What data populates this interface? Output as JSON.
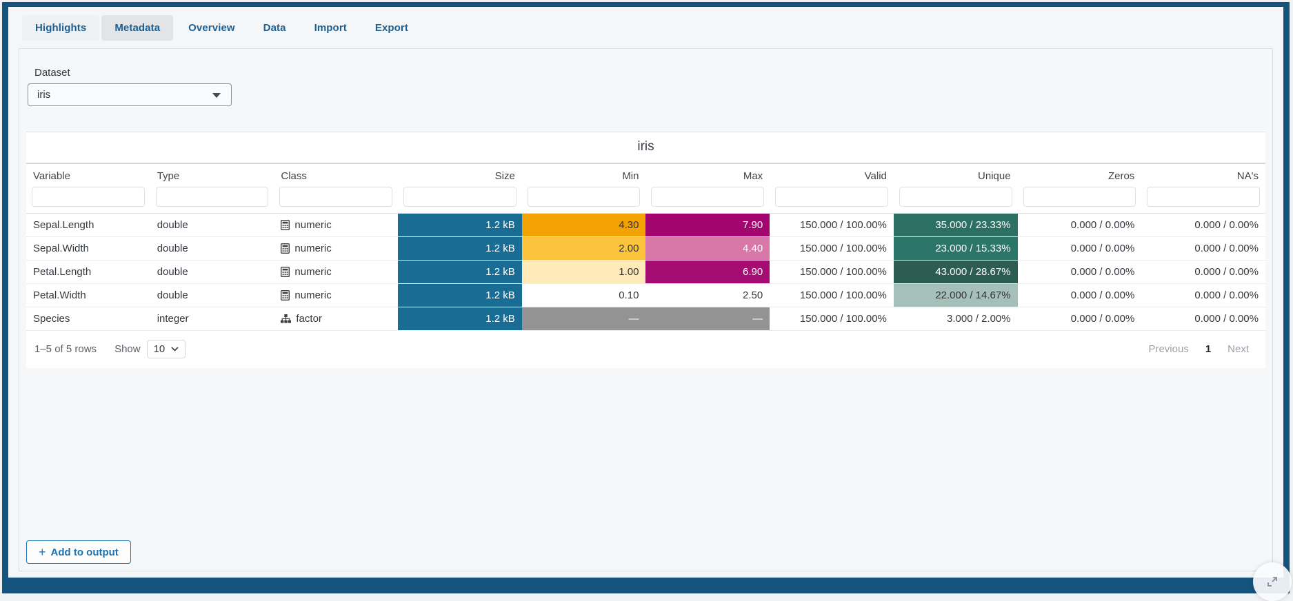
{
  "tabs": {
    "items": [
      {
        "label": "Highlights",
        "active": false,
        "tinted": true
      },
      {
        "label": "Metadata",
        "active": true,
        "tinted": false
      },
      {
        "label": "Overview",
        "active": false,
        "tinted": false
      },
      {
        "label": "Data",
        "active": false,
        "tinted": false
      },
      {
        "label": "Import",
        "active": false,
        "tinted": false
      },
      {
        "label": "Export",
        "active": false,
        "tinted": false
      }
    ]
  },
  "dataset": {
    "label": "Dataset",
    "selected": "iris"
  },
  "table": {
    "caption": "iris",
    "columns": [
      {
        "label": "Variable",
        "align": "left"
      },
      {
        "label": "Type",
        "align": "left"
      },
      {
        "label": "Class",
        "align": "left"
      },
      {
        "label": "Size",
        "align": "right"
      },
      {
        "label": "Min",
        "align": "right"
      },
      {
        "label": "Max",
        "align": "right"
      },
      {
        "label": "Valid",
        "align": "right"
      },
      {
        "label": "Unique",
        "align": "right"
      },
      {
        "label": "Zeros",
        "align": "right"
      },
      {
        "label": "NA's",
        "align": "right"
      }
    ],
    "rows": [
      {
        "cells": [
          {
            "text": "Sepal.Length"
          },
          {
            "text": "double"
          },
          {
            "text": "numeric",
            "icon": "calculator-icon"
          },
          {
            "text": "1.2 kB",
            "bg": "#196d95",
            "fg": "#ffffff"
          },
          {
            "text": "4.30",
            "bg": "#f3a203",
            "fg": "#333333"
          },
          {
            "text": "7.90",
            "bg": "#a2056d",
            "fg": "#ffffff"
          },
          {
            "text": "150.000 / 100.00%"
          },
          {
            "text": "35.000 / 23.33%",
            "bg": "#2c6f63",
            "fg": "#ffffff"
          },
          {
            "text": "0.000 / 0.00%"
          },
          {
            "text": "0.000 / 0.00%"
          }
        ]
      },
      {
        "cells": [
          {
            "text": "Sepal.Width"
          },
          {
            "text": "double"
          },
          {
            "text": "numeric",
            "icon": "calculator-icon"
          },
          {
            "text": "1.2 kB",
            "bg": "#196d95",
            "fg": "#ffffff"
          },
          {
            "text": "2.00",
            "bg": "#fbc43c",
            "fg": "#333333"
          },
          {
            "text": "4.40",
            "bg": "#d878a8",
            "fg": "#ffffff"
          },
          {
            "text": "150.000 / 100.00%"
          },
          {
            "text": "23.000 / 15.33%",
            "bg": "#2c7569",
            "fg": "#ffffff"
          },
          {
            "text": "0.000 / 0.00%"
          },
          {
            "text": "0.000 / 0.00%"
          }
        ]
      },
      {
        "cells": [
          {
            "text": "Petal.Length"
          },
          {
            "text": "double"
          },
          {
            "text": "numeric",
            "icon": "calculator-icon"
          },
          {
            "text": "1.2 kB",
            "bg": "#196d95",
            "fg": "#ffffff"
          },
          {
            "text": "1.00",
            "bg": "#fdeab8",
            "fg": "#333333"
          },
          {
            "text": "6.90",
            "bg": "#a50c72",
            "fg": "#ffffff"
          },
          {
            "text": "150.000 / 100.00%"
          },
          {
            "text": "43.000 / 28.67%",
            "bg": "#2d5c53",
            "fg": "#ffffff"
          },
          {
            "text": "0.000 / 0.00%"
          },
          {
            "text": "0.000 / 0.00%"
          }
        ]
      },
      {
        "cells": [
          {
            "text": "Petal.Width"
          },
          {
            "text": "double"
          },
          {
            "text": "numeric",
            "icon": "calculator-icon"
          },
          {
            "text": "1.2 kB",
            "bg": "#196d95",
            "fg": "#ffffff"
          },
          {
            "text": "0.10"
          },
          {
            "text": "2.50"
          },
          {
            "text": "150.000 / 100.00%"
          },
          {
            "text": "22.000 / 14.67%",
            "bg": "#a4c0b9",
            "fg": "#333333"
          },
          {
            "text": "0.000 / 0.00%"
          },
          {
            "text": "0.000 / 0.00%"
          }
        ]
      },
      {
        "cells": [
          {
            "text": "Species"
          },
          {
            "text": "integer"
          },
          {
            "text": "factor",
            "icon": "sitemap-icon"
          },
          {
            "text": "1.2 kB",
            "bg": "#196d95",
            "fg": "#ffffff"
          },
          {
            "text": "—",
            "bg": "#939393",
            "fg": "#ffffff"
          },
          {
            "text": "—",
            "bg": "#939393",
            "fg": "#ffffff"
          },
          {
            "text": "150.000 / 100.00%"
          },
          {
            "text": "3.000 / 2.00%"
          },
          {
            "text": "0.000 / 0.00%"
          },
          {
            "text": "0.000 / 0.00%"
          }
        ]
      }
    ]
  },
  "pagination": {
    "info": "1–5 of 5 rows",
    "show_label": "Show",
    "page_size": "10",
    "previous_label": "Previous",
    "current_page": "1",
    "next_label": "Next"
  },
  "actions": {
    "add_to_output": "Add to output",
    "plus_icon": "+"
  },
  "colors": {
    "frame": "#14537d",
    "accent_blue": "#1d78b5",
    "size_bar": "#196d95"
  }
}
